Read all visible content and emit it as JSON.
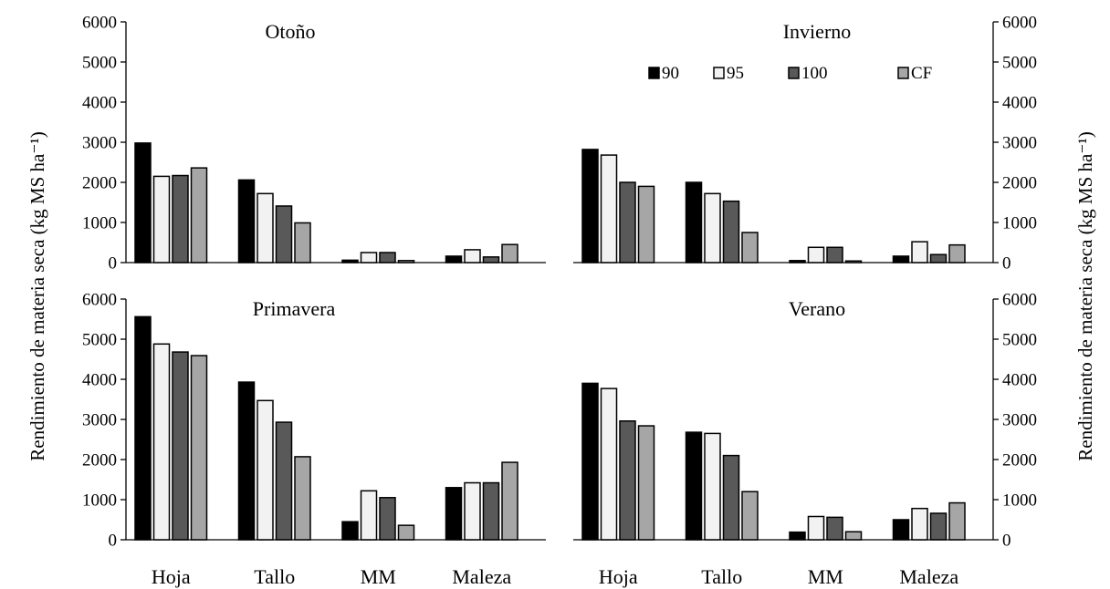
{
  "chart_data": {
    "type": "bar",
    "ylabel_left": "Rendimiento de materia seca (kg MS ha⁻¹)",
    "ylabel_right": "Rendimiento de materia seca (kg MS ha⁻¹)",
    "ylim": [
      0,
      6000
    ],
    "yticks": [
      "0",
      "1000",
      "2000",
      "3000",
      "4000",
      "5000",
      "6000"
    ],
    "categories": [
      "Hoja",
      "Tallo",
      "MM",
      "Maleza"
    ],
    "legend": {
      "placement": "top-right",
      "entries": [
        {
          "name": "90",
          "color": "#000000"
        },
        {
          "name": "95",
          "color": "#f2f2f2"
        },
        {
          "name": "100",
          "color": "#595959"
        },
        {
          "name": "CF",
          "color": "#a6a6a6"
        }
      ]
    },
    "panels": [
      {
        "title": "Otoño",
        "series": [
          {
            "name": "90",
            "values": [
              2980,
              2060,
              60,
              160
            ]
          },
          {
            "name": "95",
            "values": [
              2150,
              1720,
              250,
              320
            ]
          },
          {
            "name": "100",
            "values": [
              2170,
              1410,
              250,
              140
            ]
          },
          {
            "name": "CF",
            "values": [
              2360,
              990,
              50,
              450
            ]
          }
        ]
      },
      {
        "title": "Invierno",
        "series": [
          {
            "name": "90",
            "values": [
              2820,
              2000,
              50,
              160
            ]
          },
          {
            "name": "95",
            "values": [
              2680,
              1720,
              380,
              520
            ]
          },
          {
            "name": "100",
            "values": [
              2000,
              1530,
              380,
              200
            ]
          },
          {
            "name": "CF",
            "values": [
              1900,
              750,
              40,
              440
            ]
          }
        ]
      },
      {
        "title": "Primavera",
        "series": [
          {
            "name": "90",
            "values": [
              5560,
              3930,
              450,
              1300
            ]
          },
          {
            "name": "95",
            "values": [
              4880,
              3470,
              1220,
              1420
            ]
          },
          {
            "name": "100",
            "values": [
              4680,
              2930,
              1050,
              1420
            ]
          },
          {
            "name": "CF",
            "values": [
              4590,
              2070,
              360,
              1930
            ]
          }
        ]
      },
      {
        "title": "Verano",
        "series": [
          {
            "name": "90",
            "values": [
              3900,
              2680,
              190,
              500
            ]
          },
          {
            "name": "95",
            "values": [
              3770,
              2650,
              580,
              780
            ]
          },
          {
            "name": "100",
            "values": [
              2960,
              2100,
              560,
              660
            ]
          },
          {
            "name": "CF",
            "values": [
              2840,
              1200,
              200,
              920
            ]
          }
        ]
      }
    ]
  }
}
